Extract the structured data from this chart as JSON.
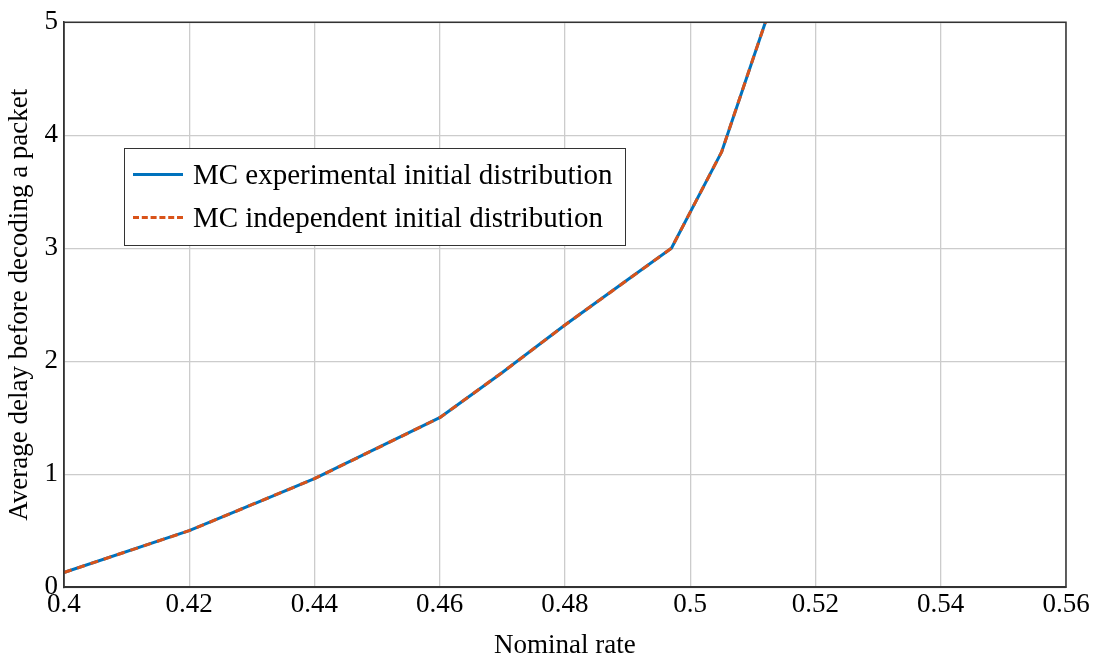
{
  "chart_data": {
    "type": "line",
    "xlabel": "Nominal rate",
    "ylabel": "Average delay before decoding a packet",
    "x": [
      0.4,
      0.42,
      0.44,
      0.46,
      0.47,
      0.48,
      0.49,
      0.497,
      0.505,
      0.512
    ],
    "series": [
      {
        "name": "MC experimental initial distribution",
        "color": "#0072bd",
        "line_style": "solid",
        "values": [
          0.13,
          0.5,
          0.96,
          1.5,
          1.9,
          2.32,
          2.72,
          3.0,
          3.85,
          5.0
        ]
      },
      {
        "name": "MC independent initial distribution",
        "color": "#d95319",
        "line_style": "dashed",
        "values": [
          0.13,
          0.5,
          0.96,
          1.5,
          1.9,
          2.32,
          2.72,
          3.0,
          3.85,
          5.0
        ]
      }
    ],
    "xlim": [
      0.4,
      0.56
    ],
    "xticks": [
      0.4,
      0.42,
      0.44,
      0.46,
      0.48,
      0.5,
      0.52,
      0.54,
      0.56
    ],
    "ylim": [
      0,
      5
    ],
    "yticks": [
      0,
      1,
      2,
      3,
      4,
      5
    ],
    "grid": true,
    "legend": "top left",
    "marker": "none"
  }
}
